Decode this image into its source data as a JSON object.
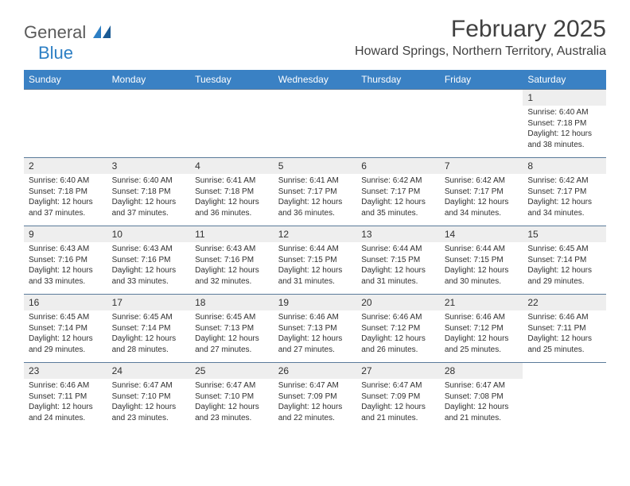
{
  "logo": {
    "main": "General",
    "sub": "Blue"
  },
  "title": "February 2025",
  "location": "Howard Springs, Northern Territory, Australia",
  "colors": {
    "header_bg": "#3a81c4",
    "header_text": "#ffffff",
    "daynum_bg": "#eeeeee",
    "text": "#303030",
    "rule": "#5a7a9a",
    "logo_main": "#5a5a5a",
    "logo_sub": "#2d7fc4"
  },
  "day_headers": [
    "Sunday",
    "Monday",
    "Tuesday",
    "Wednesday",
    "Thursday",
    "Friday",
    "Saturday"
  ],
  "weeks": [
    [
      null,
      null,
      null,
      null,
      null,
      null,
      {
        "n": "1",
        "sunrise": "Sunrise: 6:40 AM",
        "sunset": "Sunset: 7:18 PM",
        "daylight1": "Daylight: 12 hours",
        "daylight2": "and 38 minutes."
      }
    ],
    [
      {
        "n": "2",
        "sunrise": "Sunrise: 6:40 AM",
        "sunset": "Sunset: 7:18 PM",
        "daylight1": "Daylight: 12 hours",
        "daylight2": "and 37 minutes."
      },
      {
        "n": "3",
        "sunrise": "Sunrise: 6:40 AM",
        "sunset": "Sunset: 7:18 PM",
        "daylight1": "Daylight: 12 hours",
        "daylight2": "and 37 minutes."
      },
      {
        "n": "4",
        "sunrise": "Sunrise: 6:41 AM",
        "sunset": "Sunset: 7:18 PM",
        "daylight1": "Daylight: 12 hours",
        "daylight2": "and 36 minutes."
      },
      {
        "n": "5",
        "sunrise": "Sunrise: 6:41 AM",
        "sunset": "Sunset: 7:17 PM",
        "daylight1": "Daylight: 12 hours",
        "daylight2": "and 36 minutes."
      },
      {
        "n": "6",
        "sunrise": "Sunrise: 6:42 AM",
        "sunset": "Sunset: 7:17 PM",
        "daylight1": "Daylight: 12 hours",
        "daylight2": "and 35 minutes."
      },
      {
        "n": "7",
        "sunrise": "Sunrise: 6:42 AM",
        "sunset": "Sunset: 7:17 PM",
        "daylight1": "Daylight: 12 hours",
        "daylight2": "and 34 minutes."
      },
      {
        "n": "8",
        "sunrise": "Sunrise: 6:42 AM",
        "sunset": "Sunset: 7:17 PM",
        "daylight1": "Daylight: 12 hours",
        "daylight2": "and 34 minutes."
      }
    ],
    [
      {
        "n": "9",
        "sunrise": "Sunrise: 6:43 AM",
        "sunset": "Sunset: 7:16 PM",
        "daylight1": "Daylight: 12 hours",
        "daylight2": "and 33 minutes."
      },
      {
        "n": "10",
        "sunrise": "Sunrise: 6:43 AM",
        "sunset": "Sunset: 7:16 PM",
        "daylight1": "Daylight: 12 hours",
        "daylight2": "and 33 minutes."
      },
      {
        "n": "11",
        "sunrise": "Sunrise: 6:43 AM",
        "sunset": "Sunset: 7:16 PM",
        "daylight1": "Daylight: 12 hours",
        "daylight2": "and 32 minutes."
      },
      {
        "n": "12",
        "sunrise": "Sunrise: 6:44 AM",
        "sunset": "Sunset: 7:15 PM",
        "daylight1": "Daylight: 12 hours",
        "daylight2": "and 31 minutes."
      },
      {
        "n": "13",
        "sunrise": "Sunrise: 6:44 AM",
        "sunset": "Sunset: 7:15 PM",
        "daylight1": "Daylight: 12 hours",
        "daylight2": "and 31 minutes."
      },
      {
        "n": "14",
        "sunrise": "Sunrise: 6:44 AM",
        "sunset": "Sunset: 7:15 PM",
        "daylight1": "Daylight: 12 hours",
        "daylight2": "and 30 minutes."
      },
      {
        "n": "15",
        "sunrise": "Sunrise: 6:45 AM",
        "sunset": "Sunset: 7:14 PM",
        "daylight1": "Daylight: 12 hours",
        "daylight2": "and 29 minutes."
      }
    ],
    [
      {
        "n": "16",
        "sunrise": "Sunrise: 6:45 AM",
        "sunset": "Sunset: 7:14 PM",
        "daylight1": "Daylight: 12 hours",
        "daylight2": "and 29 minutes."
      },
      {
        "n": "17",
        "sunrise": "Sunrise: 6:45 AM",
        "sunset": "Sunset: 7:14 PM",
        "daylight1": "Daylight: 12 hours",
        "daylight2": "and 28 minutes."
      },
      {
        "n": "18",
        "sunrise": "Sunrise: 6:45 AM",
        "sunset": "Sunset: 7:13 PM",
        "daylight1": "Daylight: 12 hours",
        "daylight2": "and 27 minutes."
      },
      {
        "n": "19",
        "sunrise": "Sunrise: 6:46 AM",
        "sunset": "Sunset: 7:13 PM",
        "daylight1": "Daylight: 12 hours",
        "daylight2": "and 27 minutes."
      },
      {
        "n": "20",
        "sunrise": "Sunrise: 6:46 AM",
        "sunset": "Sunset: 7:12 PM",
        "daylight1": "Daylight: 12 hours",
        "daylight2": "and 26 minutes."
      },
      {
        "n": "21",
        "sunrise": "Sunrise: 6:46 AM",
        "sunset": "Sunset: 7:12 PM",
        "daylight1": "Daylight: 12 hours",
        "daylight2": "and 25 minutes."
      },
      {
        "n": "22",
        "sunrise": "Sunrise: 6:46 AM",
        "sunset": "Sunset: 7:11 PM",
        "daylight1": "Daylight: 12 hours",
        "daylight2": "and 25 minutes."
      }
    ],
    [
      {
        "n": "23",
        "sunrise": "Sunrise: 6:46 AM",
        "sunset": "Sunset: 7:11 PM",
        "daylight1": "Daylight: 12 hours",
        "daylight2": "and 24 minutes."
      },
      {
        "n": "24",
        "sunrise": "Sunrise: 6:47 AM",
        "sunset": "Sunset: 7:10 PM",
        "daylight1": "Daylight: 12 hours",
        "daylight2": "and 23 minutes."
      },
      {
        "n": "25",
        "sunrise": "Sunrise: 6:47 AM",
        "sunset": "Sunset: 7:10 PM",
        "daylight1": "Daylight: 12 hours",
        "daylight2": "and 23 minutes."
      },
      {
        "n": "26",
        "sunrise": "Sunrise: 6:47 AM",
        "sunset": "Sunset: 7:09 PM",
        "daylight1": "Daylight: 12 hours",
        "daylight2": "and 22 minutes."
      },
      {
        "n": "27",
        "sunrise": "Sunrise: 6:47 AM",
        "sunset": "Sunset: 7:09 PM",
        "daylight1": "Daylight: 12 hours",
        "daylight2": "and 21 minutes."
      },
      {
        "n": "28",
        "sunrise": "Sunrise: 6:47 AM",
        "sunset": "Sunset: 7:08 PM",
        "daylight1": "Daylight: 12 hours",
        "daylight2": "and 21 minutes."
      },
      null
    ]
  ]
}
